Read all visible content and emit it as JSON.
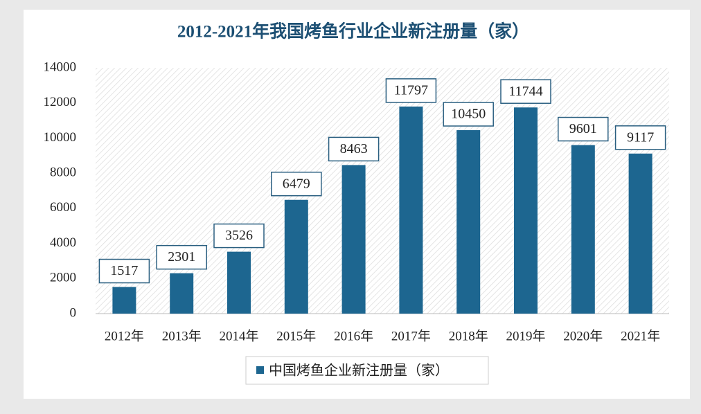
{
  "chart_data": {
    "type": "bar",
    "title": "2012-2021年我国烤鱼行业企业新注册量（家）",
    "categories": [
      "2012年",
      "2013年",
      "2014年",
      "2015年",
      "2016年",
      "2017年",
      "2018年",
      "2019年",
      "2020年",
      "2021年"
    ],
    "series": [
      {
        "name": "中国烤鱼企业新注册量（家）",
        "color": "#1d6690",
        "values": [
          1517,
          2301,
          3526,
          6479,
          8463,
          11797,
          10450,
          11744,
          9601,
          9117
        ]
      }
    ],
    "ylim": [
      0,
      14000
    ],
    "yticks": [
      0,
      2000,
      4000,
      6000,
      8000,
      10000,
      12000,
      14000
    ],
    "grid": false,
    "data_labels": true,
    "legend": "bottom"
  }
}
